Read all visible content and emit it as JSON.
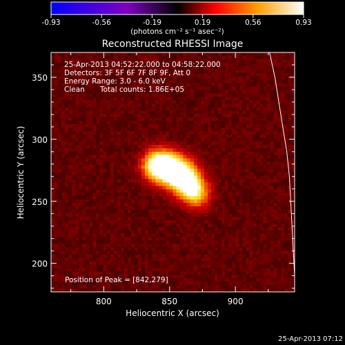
{
  "colorbar": {
    "tick_labels": [
      "-0.93",
      "-0.56",
      "-0.19",
      "0.19",
      "0.56",
      "0.93"
    ],
    "units_label": "(photons cm⁻² s⁻¹ asec⁻²)"
  },
  "image_title": "Reconstructed RHESSI Image",
  "info_lines": [
    "25-Apr-2013 04:52:22.000 to 04:58:22.000",
    "Detectors: 3F 5F 6F 7F 8F 9F, Att 0",
    "Energy Range: 3.0 - 6.0 keV"
  ],
  "clean_label": "Clean",
  "total_counts_label": "Total counts: 1.86E+05",
  "peak_label": "Position of Peak = [842,279]",
  "footer_timestamp": "25-Apr-2013 07:12",
  "chart_data": {
    "type": "heatmap",
    "title": "Reconstructed RHESSI Image",
    "xlabel": "Heliocentric X (arcsec)",
    "ylabel": "Heliocentric Y (arcsec)",
    "xlim": [
      760,
      945
    ],
    "ylim": [
      177,
      370
    ],
    "x_ticks": [
      800,
      850,
      900
    ],
    "y_ticks": [
      200,
      250,
      300,
      350
    ],
    "colorbar_range": [
      -0.93,
      0.93
    ],
    "colormap": [
      "#0000ff",
      "#7f00c0",
      "#000000",
      "#ff0000",
      "#ffa000",
      "#ffffff"
    ],
    "peak_position": [
      842,
      279
    ],
    "total_counts": 186000,
    "sources": [
      {
        "x": 842,
        "y": 279,
        "sigma": 8,
        "amplitude": 1.0
      },
      {
        "x": 852,
        "y": 276,
        "sigma": 9,
        "amplitude": 0.72
      },
      {
        "x": 860,
        "y": 270,
        "sigma": 8,
        "amplitude": 0.62
      },
      {
        "x": 866,
        "y": 262,
        "sigma": 8,
        "amplitude": 0.55
      },
      {
        "x": 871,
        "y": 254,
        "sigma": 7,
        "amplitude": 0.42
      }
    ],
    "background_level": 0.17,
    "limb_curve": [
      [
        926,
        370
      ],
      [
        930,
        350
      ],
      [
        933,
        330
      ],
      [
        936,
        310
      ],
      [
        939,
        290
      ],
      [
        941,
        270
      ],
      [
        942,
        250
      ],
      [
        943,
        230
      ],
      [
        944,
        210
      ],
      [
        945,
        190
      ],
      [
        945.5,
        177
      ]
    ]
  }
}
